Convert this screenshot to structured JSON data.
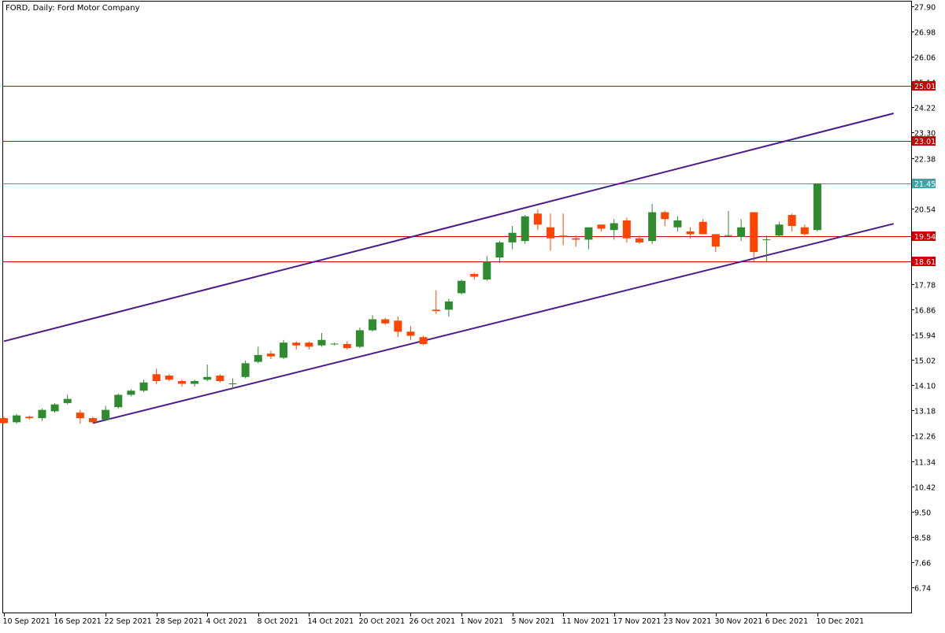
{
  "title": "FORD, Daily:  Ford Motor Company",
  "colors": {
    "up": "#2e8b2e",
    "down": "#ff4500",
    "neutral": "#2e8b2e",
    "hline": "#cc0000",
    "current_line": "#3aa6a6",
    "channel": "#4b1a8a",
    "frame": "#000000",
    "label_text": "#ffffff"
  },
  "chart_data": {
    "type": "candlestick",
    "symbol": "FORD",
    "timeframe": "Daily",
    "y_axis": {
      "min": 5.82,
      "max": 27.9,
      "ticks": [
        "27.90",
        "26.98",
        "26.06",
        "25.14",
        "24.22",
        "23.30",
        "22.38",
        "21.46",
        "20.54",
        "19.62",
        "18.70",
        "17.78",
        "16.86",
        "15.94",
        "15.02",
        "14.10",
        "13.18",
        "12.26",
        "11.34",
        "10.42",
        "9.50",
        "8.58",
        "7.66",
        "6.74"
      ]
    },
    "x_labels": [
      {
        "index": 0,
        "label": "10 Sep 2021"
      },
      {
        "index": 4,
        "label": "16 Sep 2021"
      },
      {
        "index": 8,
        "label": "22 Sep 2021"
      },
      {
        "index": 12,
        "label": "28 Sep 2021"
      },
      {
        "index": 16,
        "label": "4 Oct 2021"
      },
      {
        "index": 20,
        "label": "8 Oct 2021"
      },
      {
        "index": 24,
        "label": "14 Oct 2021"
      },
      {
        "index": 28,
        "label": "20 Oct 2021"
      },
      {
        "index": 32,
        "label": "26 Oct 2021"
      },
      {
        "index": 36,
        "label": "1 Nov 2021"
      },
      {
        "index": 40,
        "label": "5 Nov 2021"
      },
      {
        "index": 44,
        "label": "11 Nov 2021"
      },
      {
        "index": 48,
        "label": "17 Nov 2021"
      },
      {
        "index": 52,
        "label": "23 Nov 2021"
      },
      {
        "index": 56,
        "label": "30 Nov 2021"
      },
      {
        "index": 60,
        "label": "6 Dec 2021"
      },
      {
        "index": 64,
        "label": "10 Dec 2021"
      }
    ],
    "candles": [
      {
        "o": 12.9,
        "h": 12.95,
        "l": 12.7,
        "c": 12.72
      },
      {
        "o": 12.75,
        "h": 13.05,
        "l": 12.7,
        "c": 13.0
      },
      {
        "o": 12.95,
        "h": 13.0,
        "l": 12.85,
        "c": 12.9
      },
      {
        "o": 12.9,
        "h": 13.25,
        "l": 12.8,
        "c": 13.2
      },
      {
        "o": 13.15,
        "h": 13.45,
        "l": 13.1,
        "c": 13.4
      },
      {
        "o": 13.45,
        "h": 13.75,
        "l": 13.4,
        "c": 13.6
      },
      {
        "o": 13.1,
        "h": 13.2,
        "l": 12.7,
        "c": 12.9
      },
      {
        "o": 12.9,
        "h": 12.95,
        "l": 12.7,
        "c": 12.75
      },
      {
        "o": 12.85,
        "h": 13.35,
        "l": 12.8,
        "c": 13.2
      },
      {
        "o": 13.3,
        "h": 13.8,
        "l": 13.25,
        "c": 13.75
      },
      {
        "o": 13.75,
        "h": 13.95,
        "l": 13.7,
        "c": 13.9
      },
      {
        "o": 13.9,
        "h": 14.3,
        "l": 13.85,
        "c": 14.2
      },
      {
        "o": 14.5,
        "h": 14.7,
        "l": 14.15,
        "c": 14.25
      },
      {
        "o": 14.45,
        "h": 14.5,
        "l": 14.25,
        "c": 14.3
      },
      {
        "o": 14.25,
        "h": 14.3,
        "l": 14.05,
        "c": 14.15
      },
      {
        "o": 14.15,
        "h": 14.3,
        "l": 14.05,
        "c": 14.25
      },
      {
        "o": 14.3,
        "h": 14.85,
        "l": 14.25,
        "c": 14.4
      },
      {
        "o": 14.45,
        "h": 14.5,
        "l": 14.2,
        "c": 14.25
      },
      {
        "o": 14.15,
        "h": 14.35,
        "l": 13.95,
        "c": 14.15
      },
      {
        "o": 14.4,
        "h": 15.0,
        "l": 14.35,
        "c": 14.9
      },
      {
        "o": 14.95,
        "h": 15.5,
        "l": 14.9,
        "c": 15.2
      },
      {
        "o": 15.25,
        "h": 15.35,
        "l": 15.05,
        "c": 15.15
      },
      {
        "o": 15.1,
        "h": 15.75,
        "l": 15.05,
        "c": 15.65
      },
      {
        "o": 15.65,
        "h": 15.7,
        "l": 15.4,
        "c": 15.55
      },
      {
        "o": 15.65,
        "h": 15.7,
        "l": 15.4,
        "c": 15.5
      },
      {
        "o": 15.55,
        "h": 16.0,
        "l": 15.5,
        "c": 15.75
      },
      {
        "o": 15.6,
        "h": 15.65,
        "l": 15.55,
        "c": 15.6
      },
      {
        "o": 15.6,
        "h": 15.7,
        "l": 15.4,
        "c": 15.45
      },
      {
        "o": 15.5,
        "h": 16.2,
        "l": 15.45,
        "c": 16.1
      },
      {
        "o": 16.1,
        "h": 16.65,
        "l": 16.05,
        "c": 16.5
      },
      {
        "o": 16.5,
        "h": 16.55,
        "l": 16.3,
        "c": 16.35
      },
      {
        "o": 16.45,
        "h": 16.6,
        "l": 15.85,
        "c": 16.05
      },
      {
        "o": 16.05,
        "h": 16.25,
        "l": 15.75,
        "c": 15.9
      },
      {
        "o": 15.85,
        "h": 15.9,
        "l": 15.55,
        "c": 15.6
      },
      {
        "o": 16.85,
        "h": 17.55,
        "l": 16.7,
        "c": 16.8
      },
      {
        "o": 16.85,
        "h": 17.25,
        "l": 16.6,
        "c": 17.15
      },
      {
        "o": 17.45,
        "h": 17.95,
        "l": 17.4,
        "c": 17.9
      },
      {
        "o": 18.15,
        "h": 18.2,
        "l": 17.95,
        "c": 18.05
      },
      {
        "o": 17.95,
        "h": 18.8,
        "l": 17.9,
        "c": 18.6
      },
      {
        "o": 18.75,
        "h": 19.35,
        "l": 18.55,
        "c": 19.3
      },
      {
        "o": 19.3,
        "h": 19.9,
        "l": 19.05,
        "c": 19.65
      },
      {
        "o": 19.35,
        "h": 20.3,
        "l": 19.25,
        "c": 20.25
      },
      {
        "o": 20.35,
        "h": 20.5,
        "l": 19.75,
        "c": 19.95
      },
      {
        "o": 19.85,
        "h": 20.35,
        "l": 19.0,
        "c": 19.45
      },
      {
        "o": 19.55,
        "h": 20.35,
        "l": 19.2,
        "c": 19.5
      },
      {
        "o": 19.45,
        "h": 19.55,
        "l": 19.15,
        "c": 19.4
      },
      {
        "o": 19.4,
        "h": 19.85,
        "l": 19.05,
        "c": 19.85
      },
      {
        "o": 19.95,
        "h": 19.95,
        "l": 19.7,
        "c": 19.8
      },
      {
        "o": 19.75,
        "h": 20.15,
        "l": 19.4,
        "c": 20.0
      },
      {
        "o": 20.1,
        "h": 20.2,
        "l": 19.3,
        "c": 19.45
      },
      {
        "o": 19.45,
        "h": 19.55,
        "l": 19.25,
        "c": 19.3
      },
      {
        "o": 19.35,
        "h": 20.7,
        "l": 19.25,
        "c": 20.4
      },
      {
        "o": 20.4,
        "h": 20.45,
        "l": 19.9,
        "c": 20.15
      },
      {
        "o": 19.85,
        "h": 20.25,
        "l": 19.7,
        "c": 20.1
      },
      {
        "o": 19.7,
        "h": 19.85,
        "l": 19.45,
        "c": 19.6
      },
      {
        "o": 20.05,
        "h": 20.15,
        "l": 19.6,
        "c": 19.6
      },
      {
        "o": 19.6,
        "h": 19.6,
        "l": 18.95,
        "c": 19.15
      },
      {
        "o": 19.55,
        "h": 20.45,
        "l": 19.5,
        "c": 19.55
      },
      {
        "o": 19.5,
        "h": 20.15,
        "l": 19.35,
        "c": 19.85
      },
      {
        "o": 20.4,
        "h": 20.4,
        "l": 18.6,
        "c": 18.95
      },
      {
        "o": 19.4,
        "h": 19.55,
        "l": 18.6,
        "c": 19.4
      },
      {
        "o": 19.55,
        "h": 20.05,
        "l": 19.5,
        "c": 19.95
      },
      {
        "o": 20.3,
        "h": 20.35,
        "l": 19.7,
        "c": 19.9
      },
      {
        "o": 19.85,
        "h": 19.95,
        "l": 19.55,
        "c": 19.6
      },
      {
        "o": 19.75,
        "h": 21.45,
        "l": 19.7,
        "c": 21.45
      }
    ],
    "horizontal_levels": [
      {
        "value": 25.01,
        "label": "25.01",
        "kind": "level"
      },
      {
        "value": 23.01,
        "label": "23.01",
        "kind": "level"
      },
      {
        "value": 21.45,
        "label": "21.45",
        "kind": "current"
      },
      {
        "value": 19.54,
        "label": "19.54",
        "kind": "level"
      },
      {
        "value": 18.61,
        "label": "18.61",
        "kind": "level"
      }
    ],
    "trendlines": [
      {
        "name": "channel-upper",
        "from": {
          "index": 0,
          "price": 15.7
        },
        "to": {
          "index": 70,
          "price": 24.0
        }
      },
      {
        "name": "channel-lower",
        "from": {
          "index": 7,
          "price": 12.72
        },
        "to": {
          "index": 70,
          "price": 19.98
        }
      }
    ]
  }
}
